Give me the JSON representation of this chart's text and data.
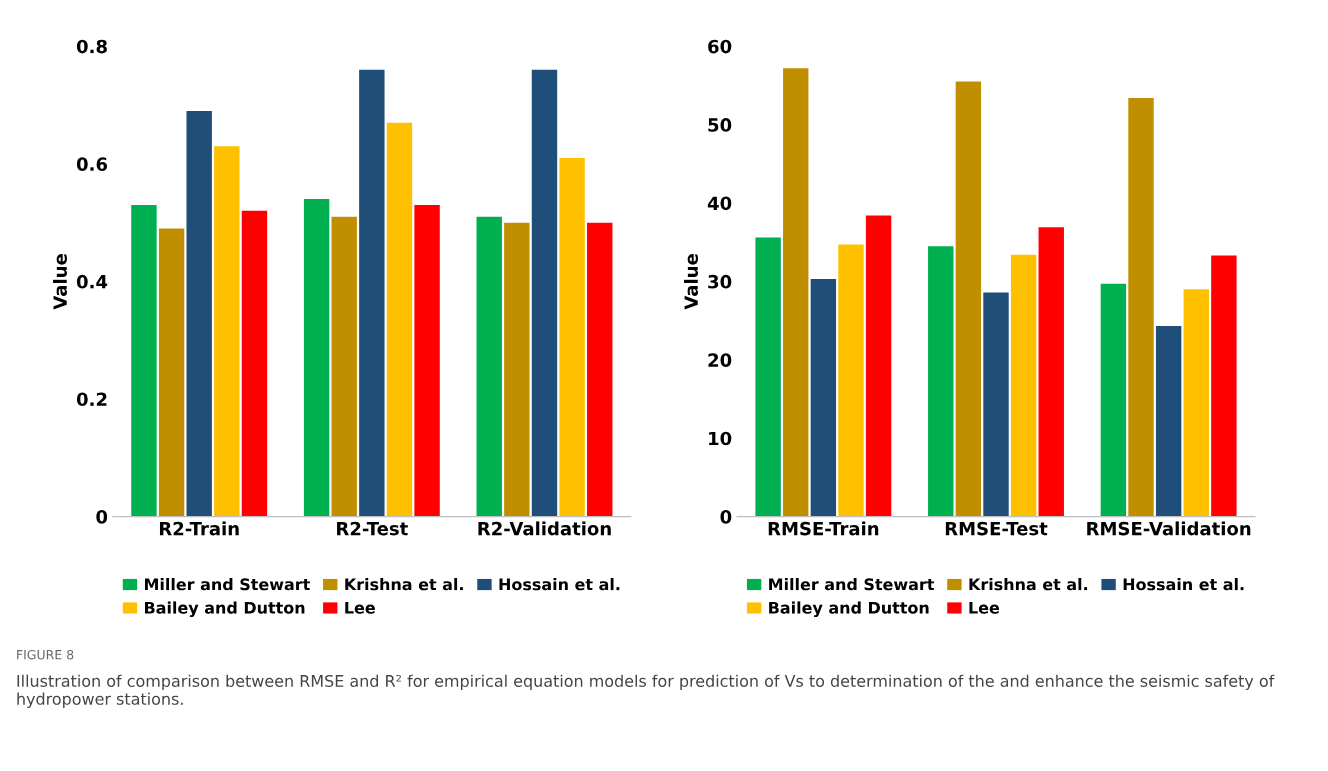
{
  "chart_data": [
    {
      "type": "bar",
      "categories": [
        "R2-Train",
        "R2-Test",
        "R2-Validation"
      ],
      "ylabel": "Value",
      "ylim": [
        0,
        0.8
      ],
      "yticks": [
        {
          "value": 0,
          "label": "0"
        },
        0.2,
        0.4,
        0.6,
        0.8
      ],
      "legend": "bottom",
      "grid": false,
      "series": [
        {
          "name": "Miller and Stewart",
          "color": "#00b050",
          "values": [
            0.53,
            0.54,
            0.51
          ]
        },
        {
          "name": "Krishna et al.",
          "color": "#bf8f00",
          "values": [
            0.49,
            0.51,
            0.5
          ]
        },
        {
          "name": "Hossain et al.",
          "color": "#1f4e79",
          "values": [
            0.69,
            0.76,
            0.76
          ]
        },
        {
          "name": "Bailey and Dutton",
          "color": "#ffc000",
          "values": [
            0.63,
            0.67,
            0.61
          ]
        },
        {
          "name": "Lee",
          "color": "#ff0000",
          "values": [
            0.52,
            0.53,
            0.5
          ]
        }
      ],
      "annotations": [
        "FIGURE 8",
        "Illustration of comparison between RMSE and R² for empirical equation models for prediction of Vs to determination of the and enhance the seismic safety of hydropower stations."
      ]
    },
    {
      "type": "bar",
      "categories": [
        "RMSE-Train",
        "RMSE-Test",
        "RMSE-Validation"
      ],
      "ylabel": "Value",
      "ylim": [
        0,
        60
      ],
      "yticks": [
        0,
        10,
        20,
        30,
        40,
        50,
        60
      ],
      "legend": "bottom",
      "grid": false,
      "series": [
        {
          "name": "Miller and Stewart",
          "color": "#00b050",
          "values": [
            35.6,
            34.5,
            29.7
          ]
        },
        {
          "name": "Krishna et al.",
          "color": "#bf8f00",
          "values": [
            57.2,
            55.5,
            53.4
          ]
        },
        {
          "name": "Hossain et al.",
          "color": "#1f4e79",
          "values": [
            30.3,
            28.6,
            24.3
          ]
        },
        {
          "name": "Bailey and Dutton",
          "color": "#ffc000",
          "values": [
            34.7,
            33.4,
            29.0
          ]
        },
        {
          "name": "Lee",
          "color": "#ff0000",
          "values": [
            38.4,
            36.9,
            33.3
          ]
        }
      ]
    }
  ]
}
